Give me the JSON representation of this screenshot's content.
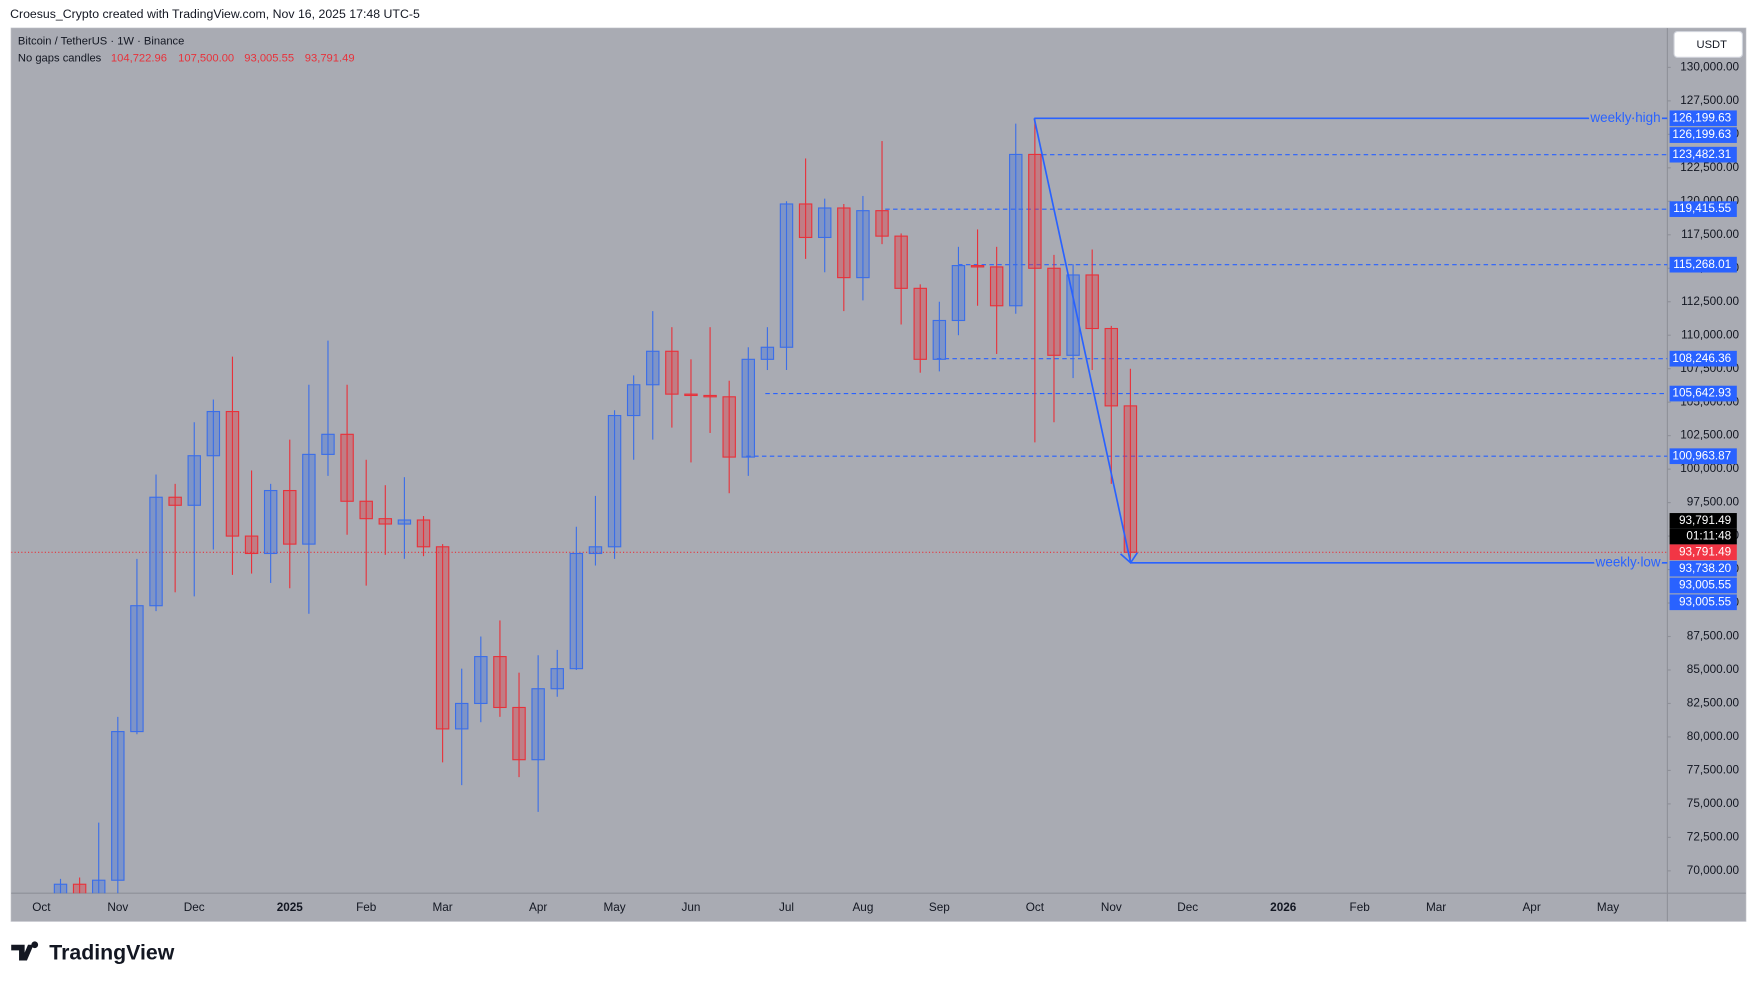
{
  "header": {
    "attribution": "Croesus_Crypto created with TradingView.com, Nov 16, 2025 17:48 UTC-5",
    "symbol": "Bitcoin / TetherUS · 1W · Binance",
    "indicator": "No gaps candles",
    "ohlc": [
      "104,722.96",
      "107,500.00",
      "93,005.55",
      "93,791.49"
    ]
  },
  "currency": "USDT",
  "footer": {
    "brand": "TradingView"
  },
  "chart_data": {
    "type": "candlestick",
    "up_color": "#3b6ee8",
    "down_color": "#e8313a",
    "grid": false,
    "categories": [
      null,
      "Oct",
      null,
      null,
      null,
      "Nov",
      null,
      null,
      null,
      "Dec",
      null,
      null,
      null,
      null,
      "2025",
      null,
      null,
      null,
      "Feb",
      null,
      null,
      null,
      "Mar",
      null,
      null,
      null,
      null,
      "Apr",
      null,
      null,
      null,
      "May",
      null,
      null,
      null,
      "Jun",
      null,
      null,
      null,
      null,
      "Jul",
      null,
      null,
      null,
      "Aug",
      null,
      null,
      null,
      "Sep",
      null,
      null,
      null,
      null,
      "Oct",
      null,
      null,
      null,
      "Nov",
      null,
      null,
      null,
      "Dec",
      null,
      null,
      null,
      null,
      "2026",
      null,
      null,
      null,
      "Feb",
      null,
      null,
      null,
      "Mar",
      null,
      null,
      null,
      null,
      "Apr",
      null,
      null,
      null,
      "May",
      null,
      null,
      null
    ],
    "open": [
      null,
      null,
      62850,
      69000,
      68000,
      69300,
      80400,
      89800,
      97900,
      97300,
      101000,
      104300,
      95000,
      93700,
      98400,
      94400,
      101100,
      102600,
      97600,
      96300,
      95900,
      96200,
      94200,
      80600,
      82500,
      86000,
      82200,
      78300,
      83600,
      85100,
      93700,
      94200,
      104000,
      106300,
      108800,
      105600,
      105500,
      105400,
      100900,
      108200,
      109100,
      119800,
      117300,
      119500,
      114300,
      119300,
      117400,
      113500,
      108200,
      111100,
      115200,
      115100,
      112200,
      123500,
      115000,
      108500,
      114500,
      110500,
      104722.96,
      null,
      null,
      null,
      null,
      null,
      null,
      null,
      null,
      null,
      null,
      null,
      null,
      null,
      null,
      null,
      null,
      null,
      null,
      null,
      null,
      null,
      null,
      null,
      null,
      null,
      null,
      null,
      null
    ],
    "high": [
      null,
      null,
      69400,
      69500,
      73600,
      81500,
      93300,
      99600,
      98900,
      103500,
      105200,
      108400,
      99900,
      98900,
      102200,
      106300,
      109600,
      106300,
      100700,
      98800,
      99400,
      96500,
      94400,
      85100,
      87500,
      88700,
      84800,
      86100,
      86500,
      95700,
      98000,
      104400,
      107000,
      111800,
      110600,
      108200,
      110600,
      106600,
      109100,
      110600,
      120000,
      123200,
      120200,
      119800,
      120400,
      124500,
      117600,
      113800,
      112500,
      116600,
      117900,
      116600,
      125800,
      126199.63,
      116000,
      115300,
      116400,
      110700,
      107500,
      null,
      null,
      null,
      null,
      null,
      null,
      null,
      null,
      null,
      null,
      null,
      null,
      null,
      null,
      null,
      null,
      null,
      null,
      null,
      null,
      null,
      null,
      null,
      null,
      null,
      null,
      null,
      null
    ],
    "low": [
      null,
      null,
      62000,
      65000,
      66800,
      66800,
      80200,
      89400,
      90800,
      90500,
      94000,
      92100,
      92200,
      91500,
      91100,
      89200,
      99500,
      95100,
      91300,
      93600,
      93300,
      93500,
      78100,
      76400,
      81100,
      81500,
      77000,
      74400,
      83000,
      85000,
      92800,
      93300,
      100700,
      102200,
      103100,
      100500,
      102700,
      98200,
      99500,
      107400,
      107400,
      115700,
      114700,
      111800,
      112600,
      116800,
      110800,
      107200,
      107300,
      110000,
      112200,
      108600,
      111600,
      102000,
      103500,
      106800,
      107400,
      98900,
      93005.55,
      null,
      null,
      null,
      null,
      null,
      null,
      null,
      null,
      null,
      null,
      null,
      null,
      null,
      null,
      null,
      null,
      null,
      null,
      null,
      null,
      null,
      null,
      null,
      null,
      null,
      null,
      null,
      null
    ],
    "close": [
      null,
      null,
      69000,
      68000,
      69300,
      80400,
      89800,
      97900,
      97300,
      101000,
      104300,
      95000,
      93700,
      98400,
      94400,
      101100,
      102600,
      97600,
      96300,
      95900,
      96200,
      94200,
      80600,
      82500,
      86000,
      82200,
      78300,
      83600,
      85100,
      93700,
      94200,
      104000,
      106300,
      108800,
      105600,
      105500,
      105400,
      100900,
      108200,
      109100,
      119800,
      117300,
      119500,
      114300,
      119300,
      117400,
      113500,
      108200,
      111100,
      115200,
      115100,
      112200,
      123500,
      115000,
      108500,
      114500,
      110500,
      104722.96,
      93791.49,
      null,
      null,
      null,
      null,
      null,
      null,
      null,
      null,
      null,
      null,
      null,
      null,
      null,
      null,
      null,
      null,
      null,
      null,
      null,
      null,
      null,
      null,
      null,
      null,
      null,
      null,
      null,
      null
    ],
    "ylim": [
      68330,
      132930
    ],
    "yticks": [
      {
        "value": 70000,
        "label": "70,000.00"
      },
      {
        "value": 72500,
        "label": "72,500.00"
      },
      {
        "value": 75000,
        "label": "75,000.00"
      },
      {
        "value": 77500,
        "label": "77,500.00"
      },
      {
        "value": 80000,
        "label": "80,000.00"
      },
      {
        "value": 82500,
        "label": "82,500.00"
      },
      {
        "value": 85000,
        "label": "85,000.00"
      },
      {
        "value": 87500,
        "label": "87,500.00"
      },
      {
        "value": 90000,
        "label": "90,000.00"
      },
      {
        "value": 92500,
        "label": "92,500.00"
      },
      {
        "value": 95000,
        "label": "95,000.00"
      },
      {
        "value": 97500,
        "label": "97,500.00"
      },
      {
        "value": 100000,
        "label": "100,000.00"
      },
      {
        "value": 102500,
        "label": "102,500.00"
      },
      {
        "value": 105000,
        "label": "105,000.00"
      },
      {
        "value": 107500,
        "label": "107,500.00"
      },
      {
        "value": 110000,
        "label": "110,000.00"
      },
      {
        "value": 112500,
        "label": "112,500.00"
      },
      {
        "value": 115000,
        "label": "115,000.00"
      },
      {
        "value": 117500,
        "label": "117,500.00"
      },
      {
        "value": 120000,
        "label": "120,000.00"
      },
      {
        "value": 122500,
        "label": "122,500.00"
      },
      {
        "value": 125000,
        "label": "125,000.00"
      },
      {
        "value": 127500,
        "label": "127,500.00"
      },
      {
        "value": 130000,
        "label": "130,000.00"
      }
    ],
    "levels": [
      123482.31,
      119415.55,
      115268.01,
      108246.36,
      105642.93,
      100963.87
    ],
    "annotations": [
      {
        "text": "weekly high",
        "value": 126199.63
      },
      {
        "text": "weekly low",
        "value": 93005.55
      }
    ],
    "last_price": {
      "value": 93791.49,
      "label": "93,791.49",
      "countdown": "01:11:48"
    },
    "price_labels": [
      {
        "value": 126199.63,
        "label": "126,199.63"
      },
      {
        "value": 126199.63,
        "label": "126,199.63"
      },
      {
        "value": 123482.31,
        "label": "123,482.31"
      },
      {
        "value": 119415.55,
        "label": "119,415.55"
      },
      {
        "value": 115268.01,
        "label": "115,268.01"
      },
      {
        "value": 108246.36,
        "label": "108,246.36"
      },
      {
        "value": 105642.93,
        "label": "105,642.93"
      },
      {
        "value": 100963.87,
        "label": "100,963.87"
      },
      {
        "value": 93738.2,
        "label": "93,738.20"
      },
      {
        "value": 93005.55,
        "label": "93,005.55"
      },
      {
        "value": 93005.55,
        "label": "93,005.55"
      }
    ]
  }
}
